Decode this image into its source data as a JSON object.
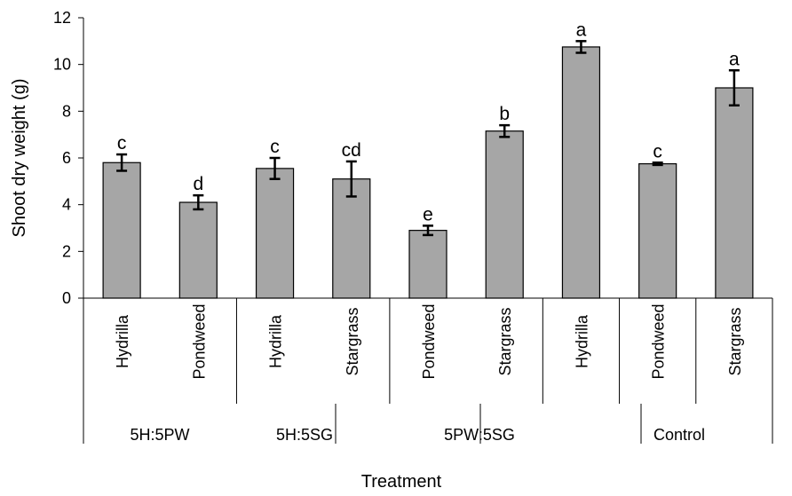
{
  "chart_data": {
    "type": "bar",
    "title": "",
    "xlabel": "Treatment",
    "ylabel": "Shoot dry weight (g)",
    "ylim": [
      0,
      12
    ],
    "yticks": [
      "0",
      "2",
      "4",
      "6",
      "8",
      "10",
      "12"
    ],
    "grid": false,
    "bar_color": "#a6a6a6",
    "categories": [
      "Hydrilla",
      "Pondweed",
      "Hydrilla",
      "Stargrass",
      "Pondweed",
      "Stargrass",
      "Hydrilla",
      "Pondweed",
      "Stargrass"
    ],
    "groups": [
      "5H:5PW",
      "5H:5SG",
      "5PW:5SG",
      "Control"
    ],
    "values": [
      5.8,
      4.1,
      5.55,
      5.1,
      2.9,
      7.15,
      10.75,
      5.75,
      9.0
    ],
    "errors": [
      0.35,
      0.3,
      0.45,
      0.75,
      0.2,
      0.25,
      0.25,
      0.05,
      0.75
    ],
    "letters": [
      "c",
      "d",
      "c",
      "cd",
      "e",
      "b",
      "a",
      "c",
      "a"
    ]
  }
}
